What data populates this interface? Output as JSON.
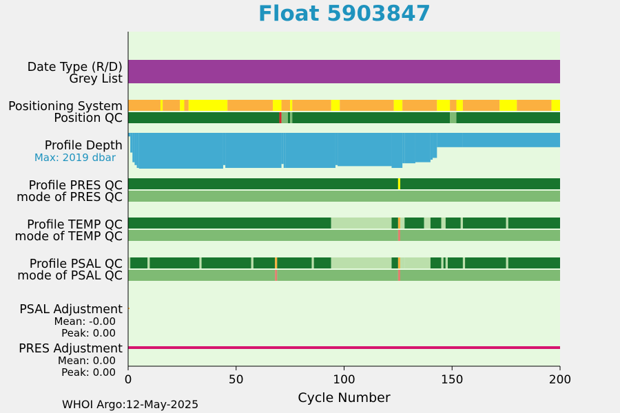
{
  "title": "Float 5903847",
  "footer": "WHOI Argo:12-May-2025",
  "colors": {
    "title": "#1f93be",
    "panel_bg": "#e6f9df",
    "purple": "#993d99",
    "orange": "#fbb040",
    "yellow": "#ffff00",
    "dark_green": "#18752e",
    "mid_green": "#7fbb74",
    "light_green": "#bbdfab",
    "blue": "#42abd1",
    "red": "#d62728",
    "pink_red": "#e08070",
    "magenta": "#d6156e",
    "label_blue": "#1f93be"
  },
  "chart_data": {
    "type": "timeline",
    "xlabel": "Cycle Number",
    "xlim": [
      0,
      200
    ],
    "xticks": [
      0,
      50,
      100,
      150,
      200
    ],
    "labels": [
      {
        "text": "Date Type (R/D)"
      },
      {
        "text": "Grey List"
      },
      {
        "text": "Positioning System"
      },
      {
        "text": "Position QC"
      },
      {
        "text": "Profile Depth"
      },
      {
        "text": "Max: 2019 dbar",
        "color": "label_blue"
      },
      {
        "text": "Profile PRES QC"
      },
      {
        "text": "mode of PRES QC"
      },
      {
        "text": "Profile TEMP QC"
      },
      {
        "text": "mode of TEMP QC"
      },
      {
        "text": "Profile PSAL QC"
      },
      {
        "text": "mode of PSAL QC"
      },
      {
        "text": "PSAL Adjustment"
      },
      {
        "text": "Mean: -0.00"
      },
      {
        "text": "Peak: 0.00"
      },
      {
        "text": "PRES Adjustment"
      },
      {
        "text": "Mean: 0.00"
      },
      {
        "text": "Peak: 0.00"
      }
    ],
    "tracks": [
      {
        "name": "Date Type (R/D)",
        "segments": [
          [
            0,
            200,
            "purple"
          ]
        ]
      },
      {
        "name": "Positioning System",
        "segments": [
          [
            0,
            15,
            "orange"
          ],
          [
            15,
            16,
            "yellow"
          ],
          [
            16,
            24,
            "orange"
          ],
          [
            24,
            26,
            "yellow"
          ],
          [
            26,
            28,
            "orange"
          ],
          [
            28,
            46,
            "yellow"
          ],
          [
            46,
            67,
            "orange"
          ],
          [
            67,
            71,
            "yellow"
          ],
          [
            71,
            75,
            "orange"
          ],
          [
            75,
            76,
            "yellow"
          ],
          [
            76,
            94,
            "orange"
          ],
          [
            94,
            98,
            "yellow"
          ],
          [
            98,
            123,
            "orange"
          ],
          [
            123,
            127,
            "yellow"
          ],
          [
            127,
            143,
            "orange"
          ],
          [
            143,
            149,
            "yellow"
          ],
          [
            149,
            152,
            "orange"
          ],
          [
            152,
            155,
            "yellow"
          ],
          [
            155,
            172,
            "orange"
          ],
          [
            172,
            180,
            "yellow"
          ],
          [
            180,
            196,
            "orange"
          ],
          [
            196,
            200,
            "yellow"
          ]
        ]
      },
      {
        "name": "Position QC",
        "segments": [
          [
            0,
            70,
            "dark_green"
          ],
          [
            70,
            71,
            "red"
          ],
          [
            71,
            74,
            "mid_green"
          ],
          [
            74,
            75,
            "dark_green"
          ],
          [
            75,
            76,
            "mid_green"
          ],
          [
            76,
            149,
            "dark_green"
          ],
          [
            149,
            152,
            "mid_green"
          ],
          [
            152,
            200,
            "dark_green"
          ]
        ]
      },
      {
        "name": "Profile PRES QC",
        "segments": [
          [
            0,
            125,
            "dark_green"
          ],
          [
            125,
            126,
            "yellow"
          ],
          [
            126,
            200,
            "dark_green"
          ]
        ]
      },
      {
        "name": "mode of PRES QC",
        "segments": [
          [
            0,
            200,
            "mid_green"
          ]
        ]
      },
      {
        "name": "Profile TEMP QC",
        "segments": [
          [
            0,
            94,
            "dark_green"
          ],
          [
            94,
            122,
            "light_green"
          ],
          [
            122,
            125,
            "dark_green"
          ],
          [
            125,
            126,
            "orange"
          ],
          [
            126,
            128,
            "light_green"
          ],
          [
            128,
            137,
            "dark_green"
          ],
          [
            137,
            140,
            "light_green"
          ],
          [
            140,
            145,
            "dark_green"
          ],
          [
            145,
            147,
            "light_green"
          ],
          [
            147,
            154,
            "dark_green"
          ],
          [
            154,
            155,
            "light_green"
          ],
          [
            155,
            175,
            "dark_green"
          ],
          [
            175,
            176,
            "light_green"
          ],
          [
            176,
            200,
            "dark_green"
          ]
        ]
      },
      {
        "name": "mode of TEMP QC",
        "segments": [
          [
            0,
            125,
            "mid_green"
          ],
          [
            125,
            126,
            "pink_red"
          ],
          [
            126,
            200,
            "mid_green"
          ]
        ]
      },
      {
        "name": "Profile PSAL QC",
        "segments": [
          [
            0,
            1,
            "light_green"
          ],
          [
            1,
            9,
            "dark_green"
          ],
          [
            9,
            10,
            "light_green"
          ],
          [
            10,
            33,
            "dark_green"
          ],
          [
            33,
            34,
            "light_green"
          ],
          [
            34,
            57,
            "dark_green"
          ],
          [
            57,
            58,
            "light_green"
          ],
          [
            58,
            68,
            "dark_green"
          ],
          [
            68,
            69,
            "orange"
          ],
          [
            69,
            85,
            "dark_green"
          ],
          [
            85,
            86,
            "light_green"
          ],
          [
            86,
            94,
            "dark_green"
          ],
          [
            94,
            122,
            "light_green"
          ],
          [
            122,
            125,
            "dark_green"
          ],
          [
            125,
            126,
            "orange"
          ],
          [
            126,
            128,
            "light_green"
          ],
          [
            128,
            140,
            "light_green"
          ],
          [
            140,
            145,
            "dark_green"
          ],
          [
            145,
            146,
            "light_green"
          ],
          [
            146,
            147,
            "dark_green"
          ],
          [
            147,
            148,
            "light_green"
          ],
          [
            148,
            155,
            "dark_green"
          ],
          [
            155,
            156,
            "light_green"
          ],
          [
            156,
            175,
            "dark_green"
          ],
          [
            175,
            176,
            "light_green"
          ],
          [
            176,
            200,
            "dark_green"
          ]
        ]
      },
      {
        "name": "mode of PSAL QC",
        "segments": [
          [
            0,
            68,
            "mid_green"
          ],
          [
            68,
            69,
            "pink_red"
          ],
          [
            69,
            125,
            "mid_green"
          ],
          [
            125,
            126,
            "pink_red"
          ],
          [
            126,
            200,
            "mid_green"
          ]
        ]
      }
    ],
    "profile_depth": {
      "max_dbar": 2019,
      "steps": [
        [
          0,
          1,
          0.1
        ],
        [
          1,
          2,
          0.55
        ],
        [
          2,
          3,
          0.82
        ],
        [
          3,
          4,
          0.9
        ],
        [
          4,
          5,
          0.98
        ],
        [
          5,
          44,
          1.0
        ],
        [
          44,
          45,
          0.9
        ],
        [
          45,
          71,
          0.98
        ],
        [
          71,
          72,
          0.87
        ],
        [
          72,
          73,
          0.98
        ],
        [
          73,
          96,
          0.98
        ],
        [
          96,
          97,
          0.9
        ],
        [
          97,
          122,
          0.93
        ],
        [
          122,
          127,
          0.98
        ],
        [
          127,
          128,
          0.85
        ],
        [
          128,
          133,
          0.85
        ],
        [
          133,
          140,
          0.82
        ],
        [
          140,
          141,
          0.75
        ],
        [
          141,
          143,
          0.7
        ],
        [
          143,
          155,
          0.4
        ],
        [
          155,
          200,
          0.4
        ]
      ]
    },
    "psal_adjustment": {
      "mean": -0.0,
      "peak": 0.0,
      "values": [
        [
          0,
          0
        ]
      ]
    },
    "pres_adjustment": {
      "mean": 0.0,
      "peak": 0.0,
      "values": [
        [
          0,
          0
        ],
        [
          200,
          0
        ]
      ]
    }
  }
}
